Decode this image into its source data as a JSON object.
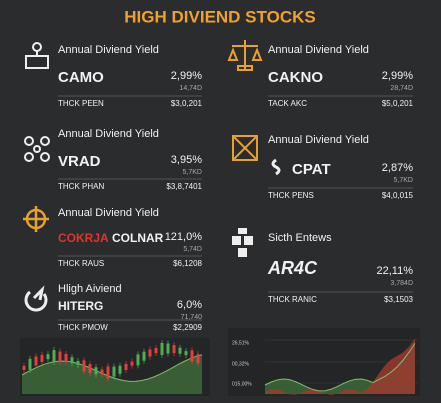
{
  "header": {
    "title": "HIGH DIVIEND STOCKS"
  },
  "cards": [
    {
      "heading": "Annual Diviend Yield",
      "ticker": "CAMO",
      "yield": "2,99%",
      "sub": "14,74D",
      "row_label": "THCK PEEN",
      "price": "$3,0,201"
    },
    {
      "heading": "Annual Diviend Yield",
      "ticker": "CAKNO",
      "yield": "2,99%",
      "sub": "28,74D",
      "row_label": "TACK AKC",
      "price": "$5,0,201"
    },
    {
      "heading": "Annual Diviend Yield",
      "ticker": "VRAD",
      "yield": "3,95%",
      "sub": "5,7KD",
      "row_label": "THCK PHAN",
      "price": "$3,8,7401"
    },
    {
      "heading": "Annual Diviend Yield",
      "ticker": "CPAT",
      "yield": "2,87%",
      "sub": "5,7KD",
      "row_label": "THCK PENS",
      "price": "$4,0,015"
    },
    {
      "heading": "Annual Diviend Yield",
      "brand": "COKRJA",
      "ticker": "COLNAR",
      "yield": "121,0%",
      "sub": "5,74D",
      "row_label": "THCK RAUS",
      "price": "$6,1208"
    },
    {
      "heading": "Sicth Entews",
      "ticker": "AR4C",
      "yield": "22,11%",
      "sub": "3,784D",
      "row_label": "THCK RANIC",
      "price": "$3,1503"
    },
    {
      "heading": "Hligh Aiviend",
      "ticker": "HITERG",
      "yield": "6,0%",
      "sub": "71,740",
      "row_label": "THCK PMOW",
      "price": "$2,2909"
    }
  ],
  "right_chart": {
    "labels": [
      "26,51%",
      "00,32%",
      "015,00%"
    ]
  }
}
